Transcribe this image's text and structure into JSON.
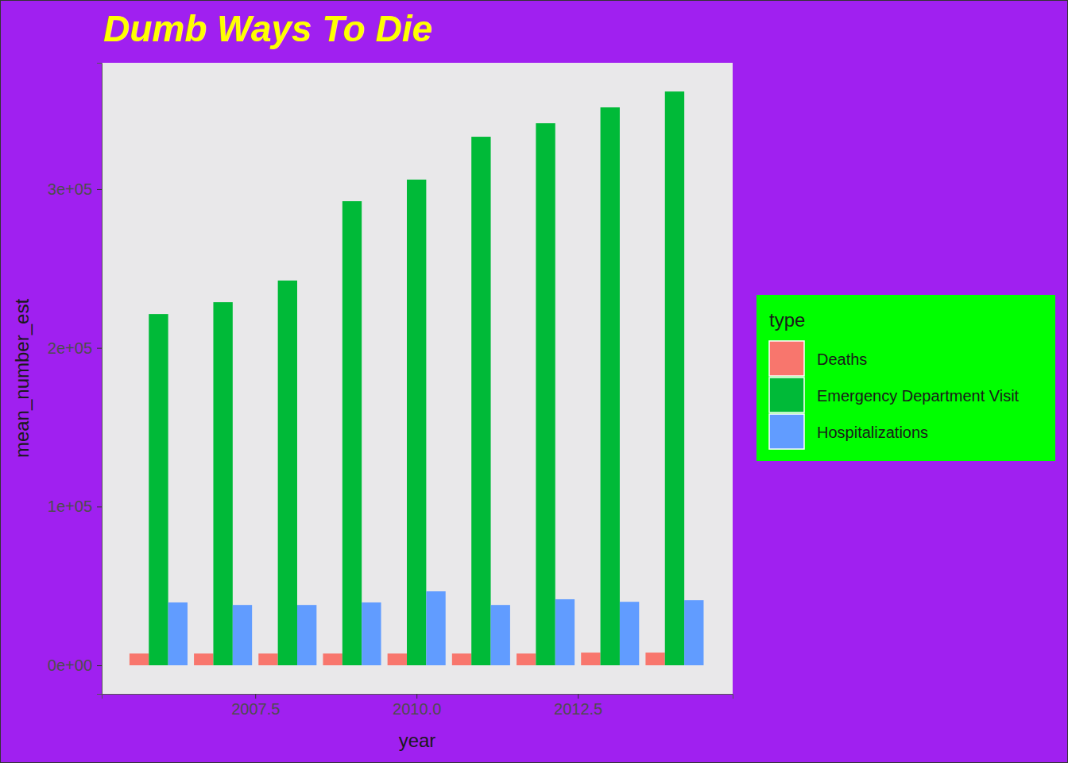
{
  "chart_data": {
    "type": "bar",
    "title": "Dumb Ways To Die",
    "x_label": "year",
    "y_label": "mean_number_est",
    "legend_title": "type",
    "x": [
      2006,
      2007,
      2008,
      2009,
      2010,
      2011,
      2012,
      2013,
      2014
    ],
    "series": [
      {
        "name": "Deaths",
        "color": "#F8766D",
        "values": [
          7400,
          7400,
          7400,
          7400,
          7400,
          7400,
          7400,
          8000,
          8000
        ]
      },
      {
        "name": "Emergency Department Visit",
        "color": "#00BA38",
        "values": [
          221300,
          228800,
          242400,
          292400,
          306000,
          333000,
          341500,
          351500,
          361500
        ]
      },
      {
        "name": "Hospitalizations",
        "color": "#619CFF",
        "values": [
          39600,
          38000,
          38000,
          39600,
          46600,
          38000,
          41600,
          40000,
          41000
        ]
      }
    ],
    "xlim": [
      2005.12,
      2014.9
    ],
    "xticks": [
      2007.5,
      {
        "value": 2010,
        "label": "2010.0"
      },
      2012.5
    ],
    "ylim": [
      -18000,
      379600
    ],
    "yticks": [
      {
        "value": 0,
        "label": "0e+00"
      },
      {
        "value": 100000,
        "label": "1e+05"
      },
      {
        "value": 200000,
        "label": "2e+05"
      },
      {
        "value": 300000,
        "label": "3e+05"
      }
    ],
    "legend": "right"
  }
}
